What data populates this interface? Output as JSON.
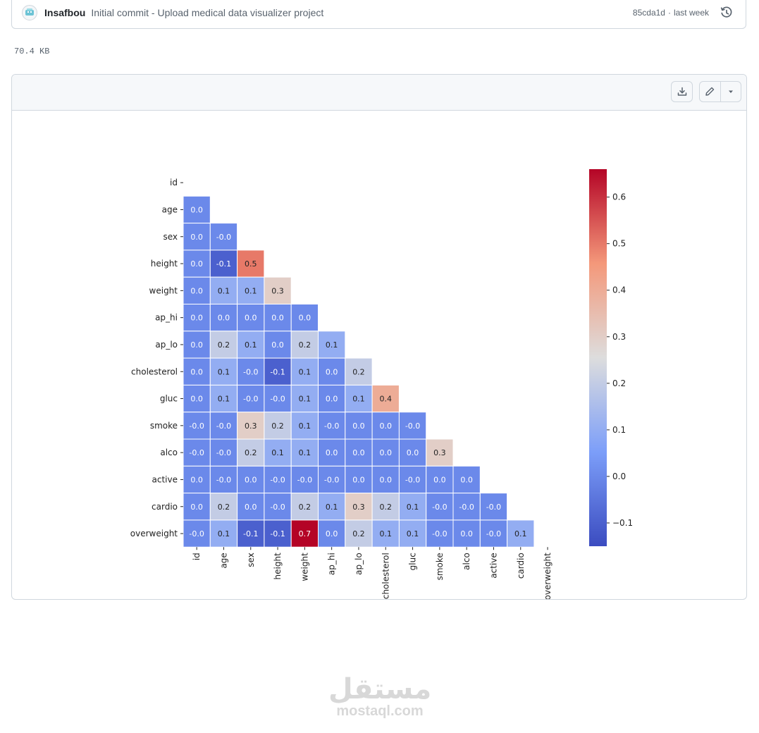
{
  "commit": {
    "author": "Insafbou",
    "message": "Initial commit - Upload medical data visualizer project",
    "sha": "85cda1d",
    "separator": "·",
    "when": "last week"
  },
  "file": {
    "size": "70.4 KB"
  },
  "icons": {
    "history": "history-icon",
    "download": "download-icon",
    "edit": "pencil-icon",
    "more": "triangle-down-icon"
  },
  "watermark": {
    "arabic": "مستقل",
    "latin": "mostaql.com"
  },
  "chart_data": {
    "type": "heatmap",
    "title": "",
    "mask": "upper-triangle-including-diagonal",
    "variables": [
      "id",
      "age",
      "sex",
      "height",
      "weight",
      "ap_hi",
      "ap_lo",
      "cholesterol",
      "gluc",
      "smoke",
      "alco",
      "active",
      "cardio",
      "overweight"
    ],
    "lower_triangle": [
      [],
      [
        "0.0"
      ],
      [
        "0.0",
        "-0.0"
      ],
      [
        "0.0",
        "-0.1",
        "0.5"
      ],
      [
        "0.0",
        "0.1",
        "0.1",
        "0.3"
      ],
      [
        "0.0",
        "0.0",
        "0.0",
        "0.0",
        "0.0"
      ],
      [
        "0.0",
        "0.2",
        "0.1",
        "0.0",
        "0.2",
        "0.1"
      ],
      [
        "0.0",
        "0.1",
        "-0.0",
        "-0.1",
        "0.1",
        "0.0",
        "0.2"
      ],
      [
        "0.0",
        "0.1",
        "-0.0",
        "-0.0",
        "0.1",
        "0.0",
        "0.1",
        "0.4"
      ],
      [
        "-0.0",
        "-0.0",
        "0.3",
        "0.2",
        "0.1",
        "-0.0",
        "0.0",
        "0.0",
        "-0.0"
      ],
      [
        "-0.0",
        "-0.0",
        "0.2",
        "0.1",
        "0.1",
        "0.0",
        "0.0",
        "0.0",
        "0.0",
        "0.3"
      ],
      [
        "0.0",
        "-0.0",
        "0.0",
        "-0.0",
        "-0.0",
        "-0.0",
        "0.0",
        "0.0",
        "-0.0",
        "0.0",
        "0.0"
      ],
      [
        "0.0",
        "0.2",
        "0.0",
        "-0.0",
        "0.2",
        "0.1",
        "0.3",
        "0.2",
        "0.1",
        "-0.0",
        "-0.0",
        "-0.0"
      ],
      [
        "-0.0",
        "0.1",
        "-0.1",
        "-0.1",
        "0.7",
        "0.0",
        "0.2",
        "0.1",
        "0.1",
        "-0.0",
        "0.0",
        "-0.0",
        "0.1"
      ]
    ],
    "colorbar": {
      "colormap": "coolwarm",
      "range": [
        -0.15,
        0.66
      ],
      "ticks": [
        -0.1,
        0.0,
        0.1,
        0.2,
        0.3,
        0.4,
        0.5,
        0.6
      ],
      "tick_labels": [
        "−0.1",
        "0.0",
        "0.1",
        "0.2",
        "0.3",
        "0.4",
        "0.5",
        "0.6"
      ]
    }
  }
}
